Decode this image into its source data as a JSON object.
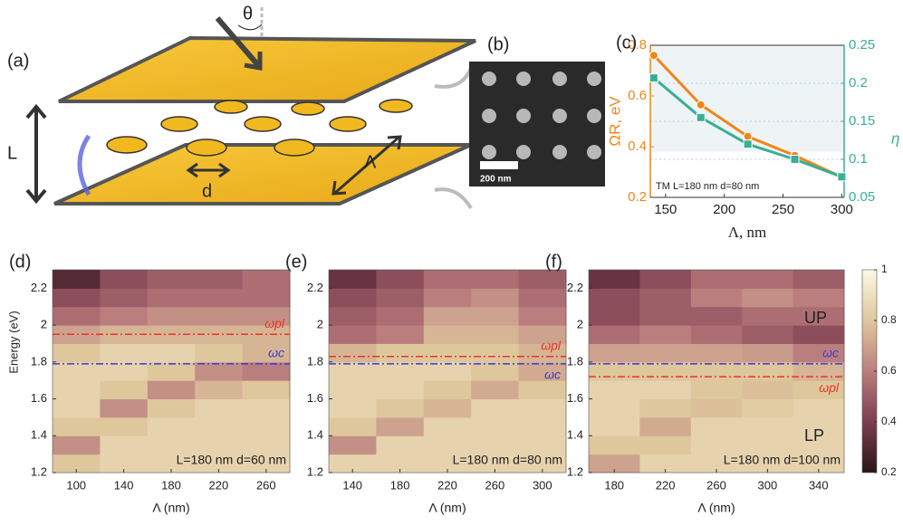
{
  "chart_data": [
    {
      "type": "diagram",
      "label": "(a)",
      "angle_label": "θ",
      "gap_label": "L",
      "diameter_label": "d",
      "period_label": "Λ"
    },
    {
      "type": "image",
      "label": "(b)",
      "scale_bar": "200 nm"
    },
    {
      "type": "line",
      "label": "(c)",
      "xlabel": "Λ, nm",
      "ylabel": "ΩR, eV",
      "y2label": "η",
      "annotation": "TM L=180 nm d=80 nm",
      "x": [
        140,
        180,
        220,
        260,
        300
      ],
      "xlim": [
        137,
        302
      ],
      "xticks": [
        150,
        200,
        250,
        300
      ],
      "ylim": [
        0.2,
        0.8
      ],
      "yticks": [
        0.2,
        0.4,
        0.6,
        0.8
      ],
      "y2lim": [
        0.05,
        0.25
      ],
      "y2ticks": [
        0.05,
        0.1,
        0.15,
        0.2,
        0.25
      ],
      "series": [
        {
          "color": "#f0861a",
          "marker": "circle",
          "values": [
            0.76,
            0.565,
            0.44,
            0.365,
            0.28
          ]
        },
        {
          "color": "#3aae96",
          "marker": "square",
          "axis": "y2",
          "values": [
            0.207,
            0.155,
            0.12,
            0.1,
            0.077
          ]
        }
      ]
    },
    {
      "type": "heatmap",
      "label": "(d)",
      "xlabel": "Λ (nm)",
      "ylabel": "Energy (eV)",
      "annotation": "L=180 nm d=60 nm",
      "x": [
        100,
        140,
        180,
        220,
        260
      ],
      "xlim": [
        80,
        280
      ],
      "xticks": [
        100,
        140,
        180,
        220,
        260
      ],
      "y": [
        1.25,
        1.35,
        1.45,
        1.55,
        1.65,
        1.75,
        1.85,
        1.95,
        2.05,
        2.15,
        2.25
      ],
      "ylim": [
        1.2,
        2.3
      ],
      "yticks": [
        1.2,
        1.4,
        1.6,
        1.8,
        2,
        2.2
      ],
      "z": [
        [
          0.8,
          0.85,
          0.85,
          0.85,
          0.85
        ],
        [
          0.65,
          0.85,
          0.85,
          0.85,
          0.85
        ],
        [
          0.8,
          0.8,
          0.85,
          0.85,
          0.85
        ],
        [
          0.85,
          0.65,
          0.8,
          0.85,
          0.85
        ],
        [
          0.85,
          0.8,
          0.65,
          0.75,
          0.8
        ],
        [
          0.85,
          0.85,
          0.8,
          0.65,
          0.6
        ],
        [
          0.8,
          0.85,
          0.85,
          0.8,
          0.75
        ],
        [
          0.7,
          0.75,
          0.75,
          0.75,
          0.75
        ],
        [
          0.55,
          0.6,
          0.65,
          0.65,
          0.65
        ],
        [
          0.45,
          0.5,
          0.55,
          0.55,
          0.55
        ],
        [
          0.3,
          0.45,
          0.5,
          0.5,
          0.55
        ]
      ],
      "lines": [
        {
          "name": "ωpl",
          "value": 1.95,
          "color": "#e8352a",
          "label_side": "above"
        },
        {
          "name": "ωc",
          "value": 1.79,
          "color": "#3a3ad8",
          "label_side": "above"
        }
      ]
    },
    {
      "type": "heatmap",
      "label": "(e)",
      "xlabel": "Λ (nm)",
      "annotation": "L=180 nm d=80 nm",
      "x": [
        140,
        180,
        220,
        260,
        300
      ],
      "xlim": [
        120,
        320
      ],
      "xticks": [
        140,
        180,
        220,
        260,
        300
      ],
      "y": [
        1.25,
        1.35,
        1.45,
        1.55,
        1.65,
        1.75,
        1.85,
        1.95,
        2.05,
        2.15,
        2.25
      ],
      "ylim": [
        1.2,
        2.3
      ],
      "yticks": [
        1.2,
        1.4,
        1.6,
        1.8,
        2,
        2.2
      ],
      "z": [
        [
          0.85,
          0.85,
          0.85,
          0.85,
          0.85
        ],
        [
          0.65,
          0.85,
          0.85,
          0.85,
          0.85
        ],
        [
          0.8,
          0.7,
          0.85,
          0.85,
          0.85
        ],
        [
          0.85,
          0.8,
          0.75,
          0.85,
          0.85
        ],
        [
          0.85,
          0.85,
          0.8,
          0.72,
          0.8
        ],
        [
          0.85,
          0.85,
          0.85,
          0.8,
          0.72
        ],
        [
          0.75,
          0.8,
          0.8,
          0.8,
          0.75
        ],
        [
          0.55,
          0.6,
          0.75,
          0.75,
          0.7
        ],
        [
          0.5,
          0.55,
          0.7,
          0.7,
          0.6
        ],
        [
          0.45,
          0.5,
          0.6,
          0.65,
          0.55
        ],
        [
          0.35,
          0.45,
          0.55,
          0.55,
          0.5
        ]
      ],
      "lines": [
        {
          "name": "ωpl",
          "value": 1.83,
          "color": "#e8352a",
          "label_side": "above"
        },
        {
          "name": "ωc",
          "value": 1.79,
          "color": "#3a3ad8",
          "label_side": "below"
        }
      ]
    },
    {
      "type": "heatmap",
      "label": "(f)",
      "xlabel": "Λ (nm)",
      "annotation": "L=180 nm d=100 nm",
      "upper_label": "UP",
      "lower_label": "LP",
      "x": [
        180,
        220,
        260,
        300,
        340
      ],
      "xlim": [
        160,
        360
      ],
      "xticks": [
        180,
        220,
        260,
        300,
        340
      ],
      "y": [
        1.25,
        1.35,
        1.45,
        1.55,
        1.65,
        1.75,
        1.85,
        1.95,
        2.05,
        2.15,
        2.25
      ],
      "ylim": [
        1.2,
        2.3
      ],
      "yticks": [
        1.2,
        1.4,
        1.6,
        1.8,
        2,
        2.2
      ],
      "z": [
        [
          0.7,
          0.85,
          0.85,
          0.85,
          0.85
        ],
        [
          0.8,
          0.8,
          0.85,
          0.85,
          0.85
        ],
        [
          0.85,
          0.72,
          0.85,
          0.85,
          0.85
        ],
        [
          0.85,
          0.8,
          0.78,
          0.82,
          0.85
        ],
        [
          0.85,
          0.85,
          0.8,
          0.78,
          0.8
        ],
        [
          0.8,
          0.8,
          0.8,
          0.8,
          0.75
        ],
        [
          0.7,
          0.7,
          0.7,
          0.68,
          0.6
        ],
        [
          0.55,
          0.6,
          0.55,
          0.5,
          0.45
        ],
        [
          0.45,
          0.5,
          0.5,
          0.55,
          0.55
        ],
        [
          0.45,
          0.5,
          0.6,
          0.65,
          0.6
        ],
        [
          0.35,
          0.45,
          0.55,
          0.55,
          0.5
        ]
      ],
      "lines": [
        {
          "name": "ωc",
          "value": 1.79,
          "color": "#3a3ad8",
          "label_side": "above"
        },
        {
          "name": "ωpl",
          "value": 1.72,
          "color": "#e8352a",
          "label_side": "below"
        }
      ],
      "colormap": [
        "#2b1519",
        "#7d3e4f",
        "#bb7e7f",
        "#dfc79c",
        "#fbf9e6"
      ],
      "colorbar_lim": [
        0.2,
        1
      ],
      "colorbar_ticks": [
        0.2,
        0.4,
        0.6,
        0.8,
        1
      ]
    }
  ]
}
